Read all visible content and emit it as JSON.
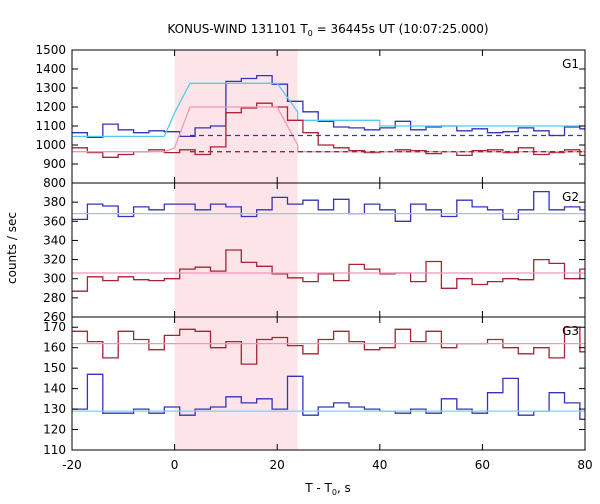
{
  "chart_data": {
    "type": "line",
    "title": "KONUS-WIND 131101 T",
    "title_sub": "0",
    "title_tail": " = 36445s UT (10:07:25.000)",
    "xlabel_main": "T - T",
    "xlabel_sub": "0",
    "xlabel_tail": ", s",
    "ylabel": "counts / sec",
    "xlim": [
      -20,
      80
    ],
    "x_ticks": [
      -20,
      0,
      20,
      40,
      60,
      80
    ],
    "x_tick_labels": [
      "-20",
      "0",
      "20",
      "40",
      "60",
      "80"
    ],
    "highlight": {
      "x0": 0,
      "x1": 24,
      "color": "#fde4e8"
    },
    "panels": [
      {
        "label": "G1",
        "ylim": [
          800,
          1500
        ],
        "y_ticks": [
          800,
          900,
          1000,
          1100,
          1200,
          1300,
          1400,
          1500
        ],
        "series": [
          {
            "color": "#3333bb",
            "style": "step",
            "x0": -20,
            "dx": 3,
            "values": [
              1065,
              1040,
              1110,
              1080,
              1065,
              1075,
              1070,
              1045,
              1090,
              1100,
              1335,
              1350,
              1365,
              1320,
              1230,
              1175,
              1125,
              1095,
              1090,
              1080,
              1090,
              1125,
              1080,
              1095,
              1100,
              1075,
              1085,
              1065,
              1070,
              1090,
              1075,
              1050,
              1095,
              1085,
              1070
            ]
          },
          {
            "color": "#55ccee",
            "style": "step_sparse",
            "points": [
              [
                -20,
                1045
              ],
              [
                -2,
                1045
              ],
              [
                0,
                1170
              ],
              [
                3,
                1325
              ],
              [
                20,
                1325
              ],
              [
                24,
                1175
              ],
              [
                24,
                1130
              ],
              [
                40,
                1130
              ],
              [
                40,
                1100
              ],
              [
                80,
                1100
              ]
            ]
          },
          {
            "color": "#aa2233",
            "style": "step",
            "x0": -20,
            "dx": 3,
            "values": [
              985,
              960,
              935,
              950,
              965,
              975,
              960,
              975,
              950,
              990,
              1170,
              1195,
              1220,
              1200,
              1130,
              1065,
              1000,
              985,
              970,
              960,
              965,
              975,
              970,
              955,
              965,
              945,
              970,
              975,
              960,
              985,
              950,
              960,
              975,
              945,
              960
            ]
          },
          {
            "color": "#ee99bb",
            "style": "step_sparse",
            "points": [
              [
                -20,
                965
              ],
              [
                -2,
                965
              ],
              [
                0,
                985
              ],
              [
                3,
                1200
              ],
              [
                20,
                1200
              ],
              [
                24,
                1000
              ],
              [
                24,
                965
              ],
              [
                80,
                965
              ]
            ]
          },
          {
            "color": "#3333bb",
            "style": "dashed",
            "points": [
              [
                3,
                1050
              ],
              [
                80,
                1050
              ]
            ]
          },
          {
            "color": "#aa2233",
            "style": "dashed",
            "points": [
              [
                3,
                965
              ],
              [
                80,
                965
              ]
            ]
          }
        ]
      },
      {
        "label": "G2",
        "ylim": [
          260,
          400
        ],
        "y_ticks": [
          260,
          280,
          300,
          320,
          340,
          360,
          380,
          400
        ],
        "series": [
          {
            "color": "#3333bb",
            "style": "step",
            "x0": -20,
            "dx": 3,
            "values": [
              362,
              378,
              376,
              365,
              375,
              372,
              378,
              378,
              372,
              378,
              375,
              365,
              372,
              385,
              378,
              382,
              372,
              383,
              368,
              378,
              372,
              360,
              378,
              372,
              365,
              382,
              375,
              372,
              362,
              372,
              391,
              372,
              375,
              372,
              368
            ]
          },
          {
            "color": "#88ccee",
            "style": "flat",
            "value": 368
          },
          {
            "color": "#aa2233",
            "style": "step",
            "x0": -20,
            "dx": 3,
            "values": [
              287,
              302,
              298,
              302,
              299,
              298,
              300,
              310,
              312,
              308,
              330,
              317,
              313,
              305,
              301,
              297,
              305,
              298,
              315,
              310,
              305,
              306,
              297,
              318,
              290,
              300,
              294,
              297,
              300,
              299,
              320,
              316,
              300,
              310,
              297
            ]
          },
          {
            "color": "#ee99bb",
            "style": "flat",
            "value": 306
          }
        ]
      },
      {
        "label": "G3",
        "ylim": [
          110,
          175
        ],
        "y_ticks": [
          110,
          120,
          130,
          140,
          150,
          160,
          170
        ],
        "series": [
          {
            "color": "#aa2233",
            "style": "step",
            "x0": -20,
            "dx": 3,
            "values": [
              168,
              163,
              155,
              168,
              164,
              159,
              166,
              169,
              168,
              160,
              163,
              152,
              164,
              165,
              161,
              157,
              164,
              168,
              163,
              159,
              160,
              169,
              163,
              168,
              160,
              162,
              162,
              164,
              160,
              157,
              160,
              155,
              170,
              158,
              162
            ]
          },
          {
            "color": "#ee99bb",
            "style": "flat",
            "value": 162
          },
          {
            "color": "#3333bb",
            "style": "step",
            "x0": -20,
            "dx": 3,
            "values": [
              130,
              147,
              128,
              128,
              130,
              128,
              131,
              127,
              130,
              131,
              136,
              133,
              135,
              130,
              146,
              127,
              131,
              133,
              131,
              130,
              129,
              128,
              130,
              128,
              135,
              130,
              128,
              138,
              145,
              127,
              129,
              138,
              133,
              125,
              128
            ]
          },
          {
            "color": "#88ccee",
            "style": "flat",
            "value": 129
          }
        ]
      }
    ]
  }
}
